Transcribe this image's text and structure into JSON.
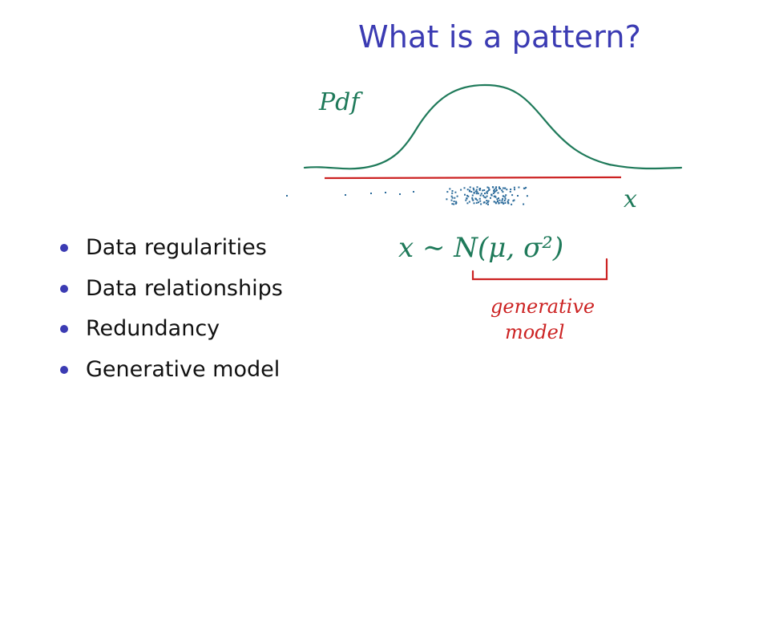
{
  "slide": {
    "title": "What is a pattern?",
    "bullets": [
      "Data regularities",
      "Data relationships",
      "Redundancy",
      "Generative model"
    ]
  },
  "sketch": {
    "pdf_label": "Pdf",
    "axis_label": "x",
    "formula": "x ∼ N(μ, σ²)",
    "annotation_line1": "generative",
    "annotation_line2": "model",
    "colors": {
      "title": "#3b3bb3",
      "curve": "#1f7a5a",
      "axis": "#cc2222",
      "points": "#2a6a9a",
      "annotation": "#cc2222"
    }
  }
}
